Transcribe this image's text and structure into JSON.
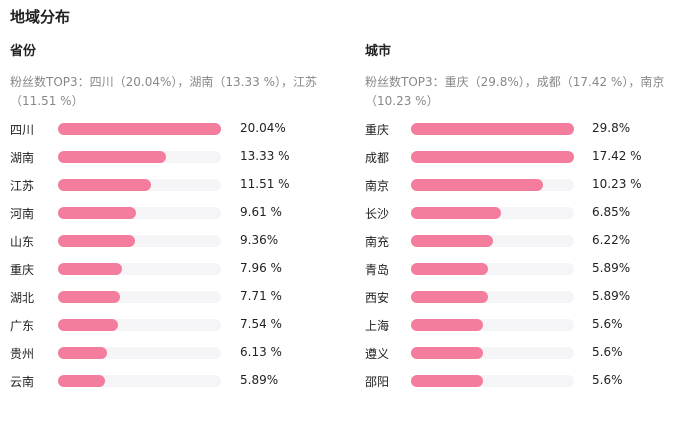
{
  "title": "地域分布",
  "province": {
    "heading": "省份",
    "top3": "粉丝数TOP3：四川（20.04%），湖南（13.33 %），江苏（11.51 %）",
    "rows": [
      {
        "name": "四川",
        "value": "20.04%",
        "bar_fill": 1.0
      },
      {
        "name": "湖南",
        "value": "13.33 %",
        "bar_fill": 0.66
      },
      {
        "name": "江苏",
        "value": "11.51  %",
        "bar_fill": 0.57
      },
      {
        "name": "河南",
        "value": "9.61 %",
        "bar_fill": 0.48
      },
      {
        "name": "山东",
        "value": "9.36%",
        "bar_fill": 0.47
      },
      {
        "name": "重庆",
        "value": "7.96 %",
        "bar_fill": 0.39
      },
      {
        "name": "湖北",
        "value": "7.71 %",
        "bar_fill": 0.38
      },
      {
        "name": "广东",
        "value": "7.54 %",
        "bar_fill": 0.37
      },
      {
        "name": "贵州",
        "value": "6.13 %",
        "bar_fill": 0.3
      },
      {
        "name": "云南",
        "value": "5.89%",
        "bar_fill": 0.29
      }
    ]
  },
  "city": {
    "heading": "城市",
    "top3": "粉丝数TOP3：重庆（29.8%），成都（17.42 %），南京（10.23 %）",
    "rows": [
      {
        "name": "重庆",
        "value": "29.8%",
        "bar_fill": 1.0
      },
      {
        "name": "成都",
        "value": "17.42 %",
        "bar_fill": 1.0
      },
      {
        "name": "南京",
        "value": "10.23 %",
        "bar_fill": 0.81
      },
      {
        "name": "长沙",
        "value": "6.85%",
        "bar_fill": 0.55
      },
      {
        "name": "南充",
        "value": "6.22%",
        "bar_fill": 0.5
      },
      {
        "name": "青岛",
        "value": "5.89%",
        "bar_fill": 0.47
      },
      {
        "name": "西安",
        "value": "5.89%",
        "bar_fill": 0.47
      },
      {
        "name": "上海",
        "value": "5.6%",
        "bar_fill": 0.44
      },
      {
        "name": "遵义",
        "value": "5.6%",
        "bar_fill": 0.44
      },
      {
        "name": "邵阳",
        "value": "5.6%",
        "bar_fill": 0.44
      }
    ]
  }
}
